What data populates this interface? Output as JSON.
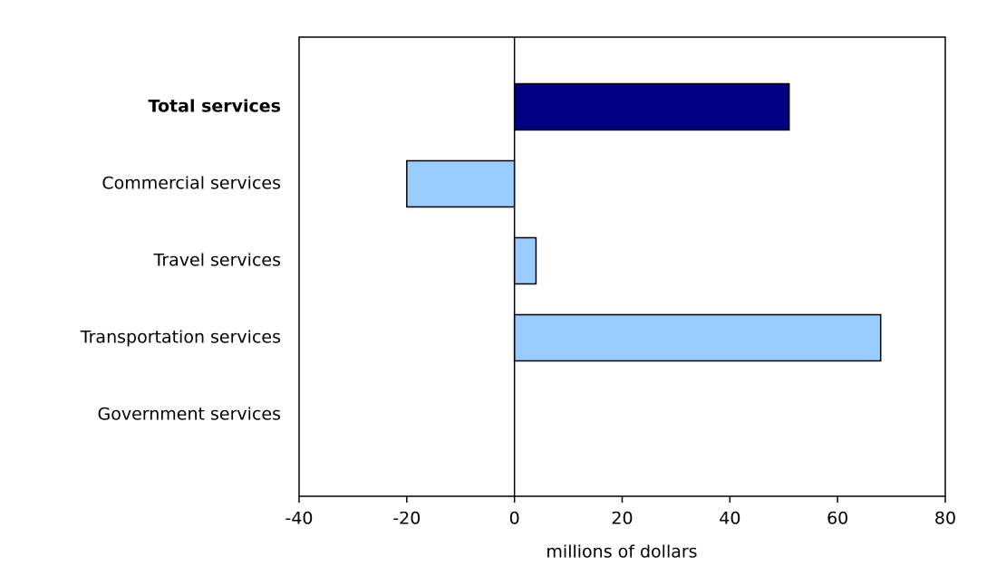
{
  "chart_data": {
    "type": "bar",
    "orientation": "horizontal",
    "categories": [
      "Total services",
      "Commercial services",
      "Travel services",
      "Transportation services",
      "Government services"
    ],
    "values": [
      51,
      -20,
      4,
      68,
      0
    ],
    "colors": [
      "#000080",
      "#99ccff",
      "#99ccff",
      "#99ccff",
      "#99ccff"
    ],
    "xlabel": "millions of dollars",
    "xlim": [
      -40,
      80
    ],
    "xticks": [
      -40,
      -20,
      0,
      20,
      40,
      60,
      80
    ],
    "grid": false
  }
}
